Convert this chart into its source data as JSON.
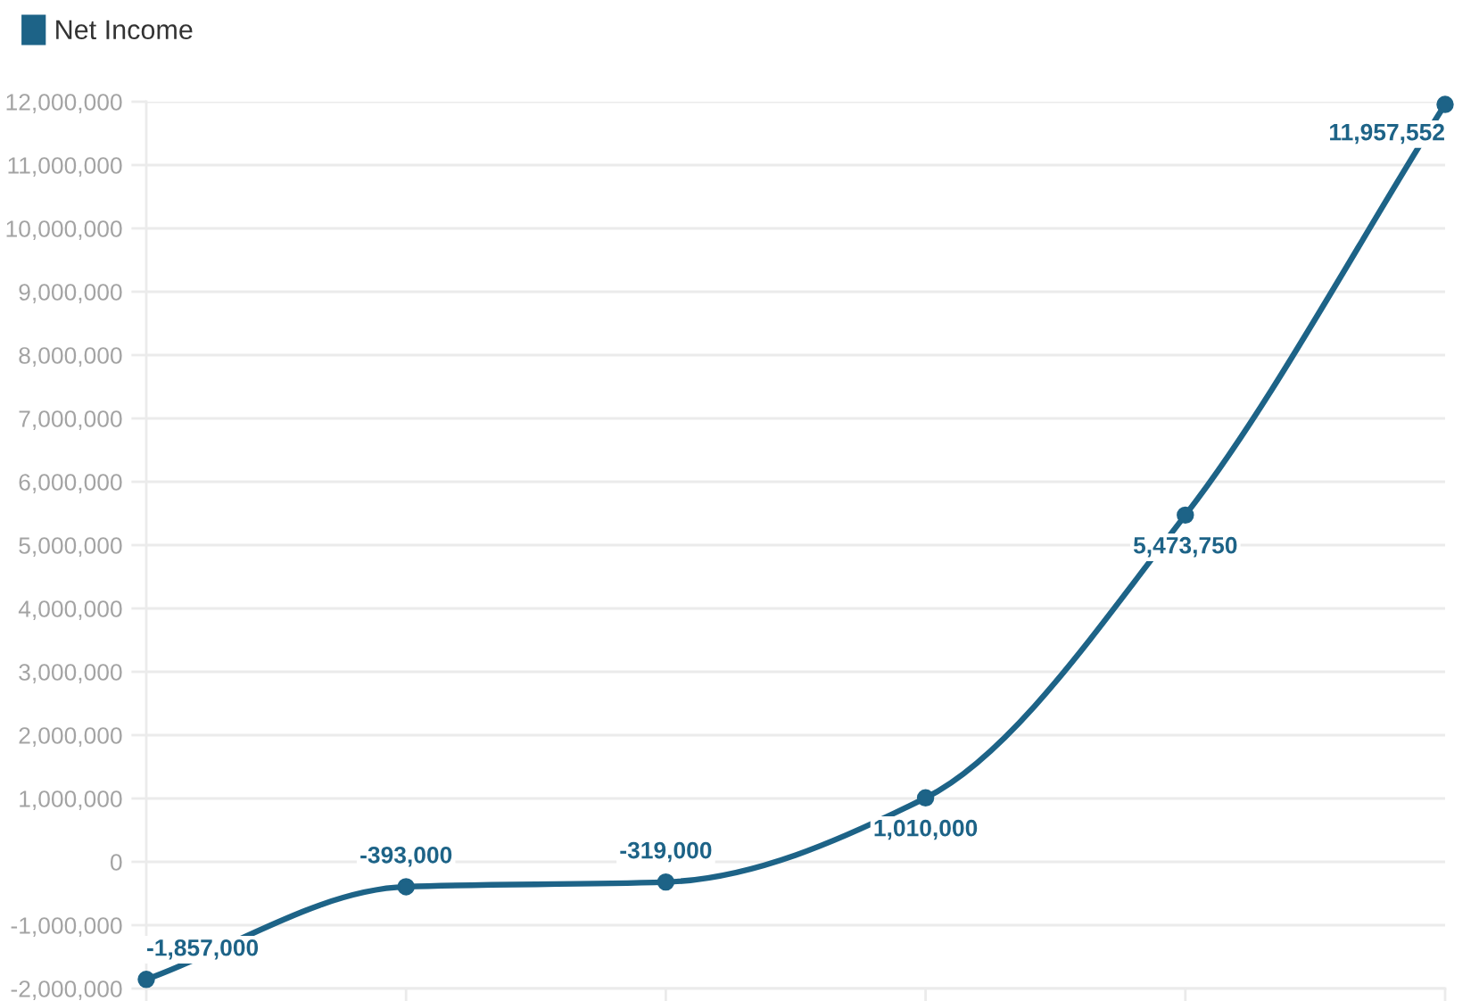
{
  "chart_data": {
    "type": "line",
    "categories": [
      null,
      null,
      null,
      null,
      null,
      null
    ],
    "series": [
      {
        "name": "Net Income",
        "color": "#1d6387",
        "values": [
          -1857000,
          -393000,
          -319000,
          1010000,
          5473750,
          11957552
        ],
        "value_labels": [
          "-1,857,000",
          "-393,000",
          "-319,000",
          "1,010,000",
          "5,473,750",
          "11,957,552"
        ]
      }
    ],
    "ylim": [
      -2000000,
      12000000
    ],
    "yticks": [
      {
        "value": -2000000,
        "label": "-2,000,000"
      },
      {
        "value": -1000000,
        "label": "-1,000,000"
      },
      0,
      {
        "value": 1000000,
        "label": "1,000,000"
      },
      {
        "value": 2000000,
        "label": "2,000,000"
      },
      {
        "value": 3000000,
        "label": "3,000,000"
      },
      {
        "value": 4000000,
        "label": "4,000,000"
      },
      {
        "value": 5000000,
        "label": "5,000,000"
      },
      {
        "value": 6000000,
        "label": "6,000,000"
      },
      {
        "value": 7000000,
        "label": "7,000,000"
      },
      {
        "value": 8000000,
        "label": "8,000,000"
      },
      {
        "value": 9000000,
        "label": "9,000,000"
      },
      {
        "value": 10000000,
        "label": "10,000,000"
      },
      {
        "value": 11000000,
        "label": "11,000,000"
      },
      {
        "value": 12000000,
        "label": "12,000,000"
      }
    ],
    "grid": "y",
    "legend": "top left",
    "marker": "circle",
    "line_style": "solid",
    "tick_labels": "y"
  }
}
